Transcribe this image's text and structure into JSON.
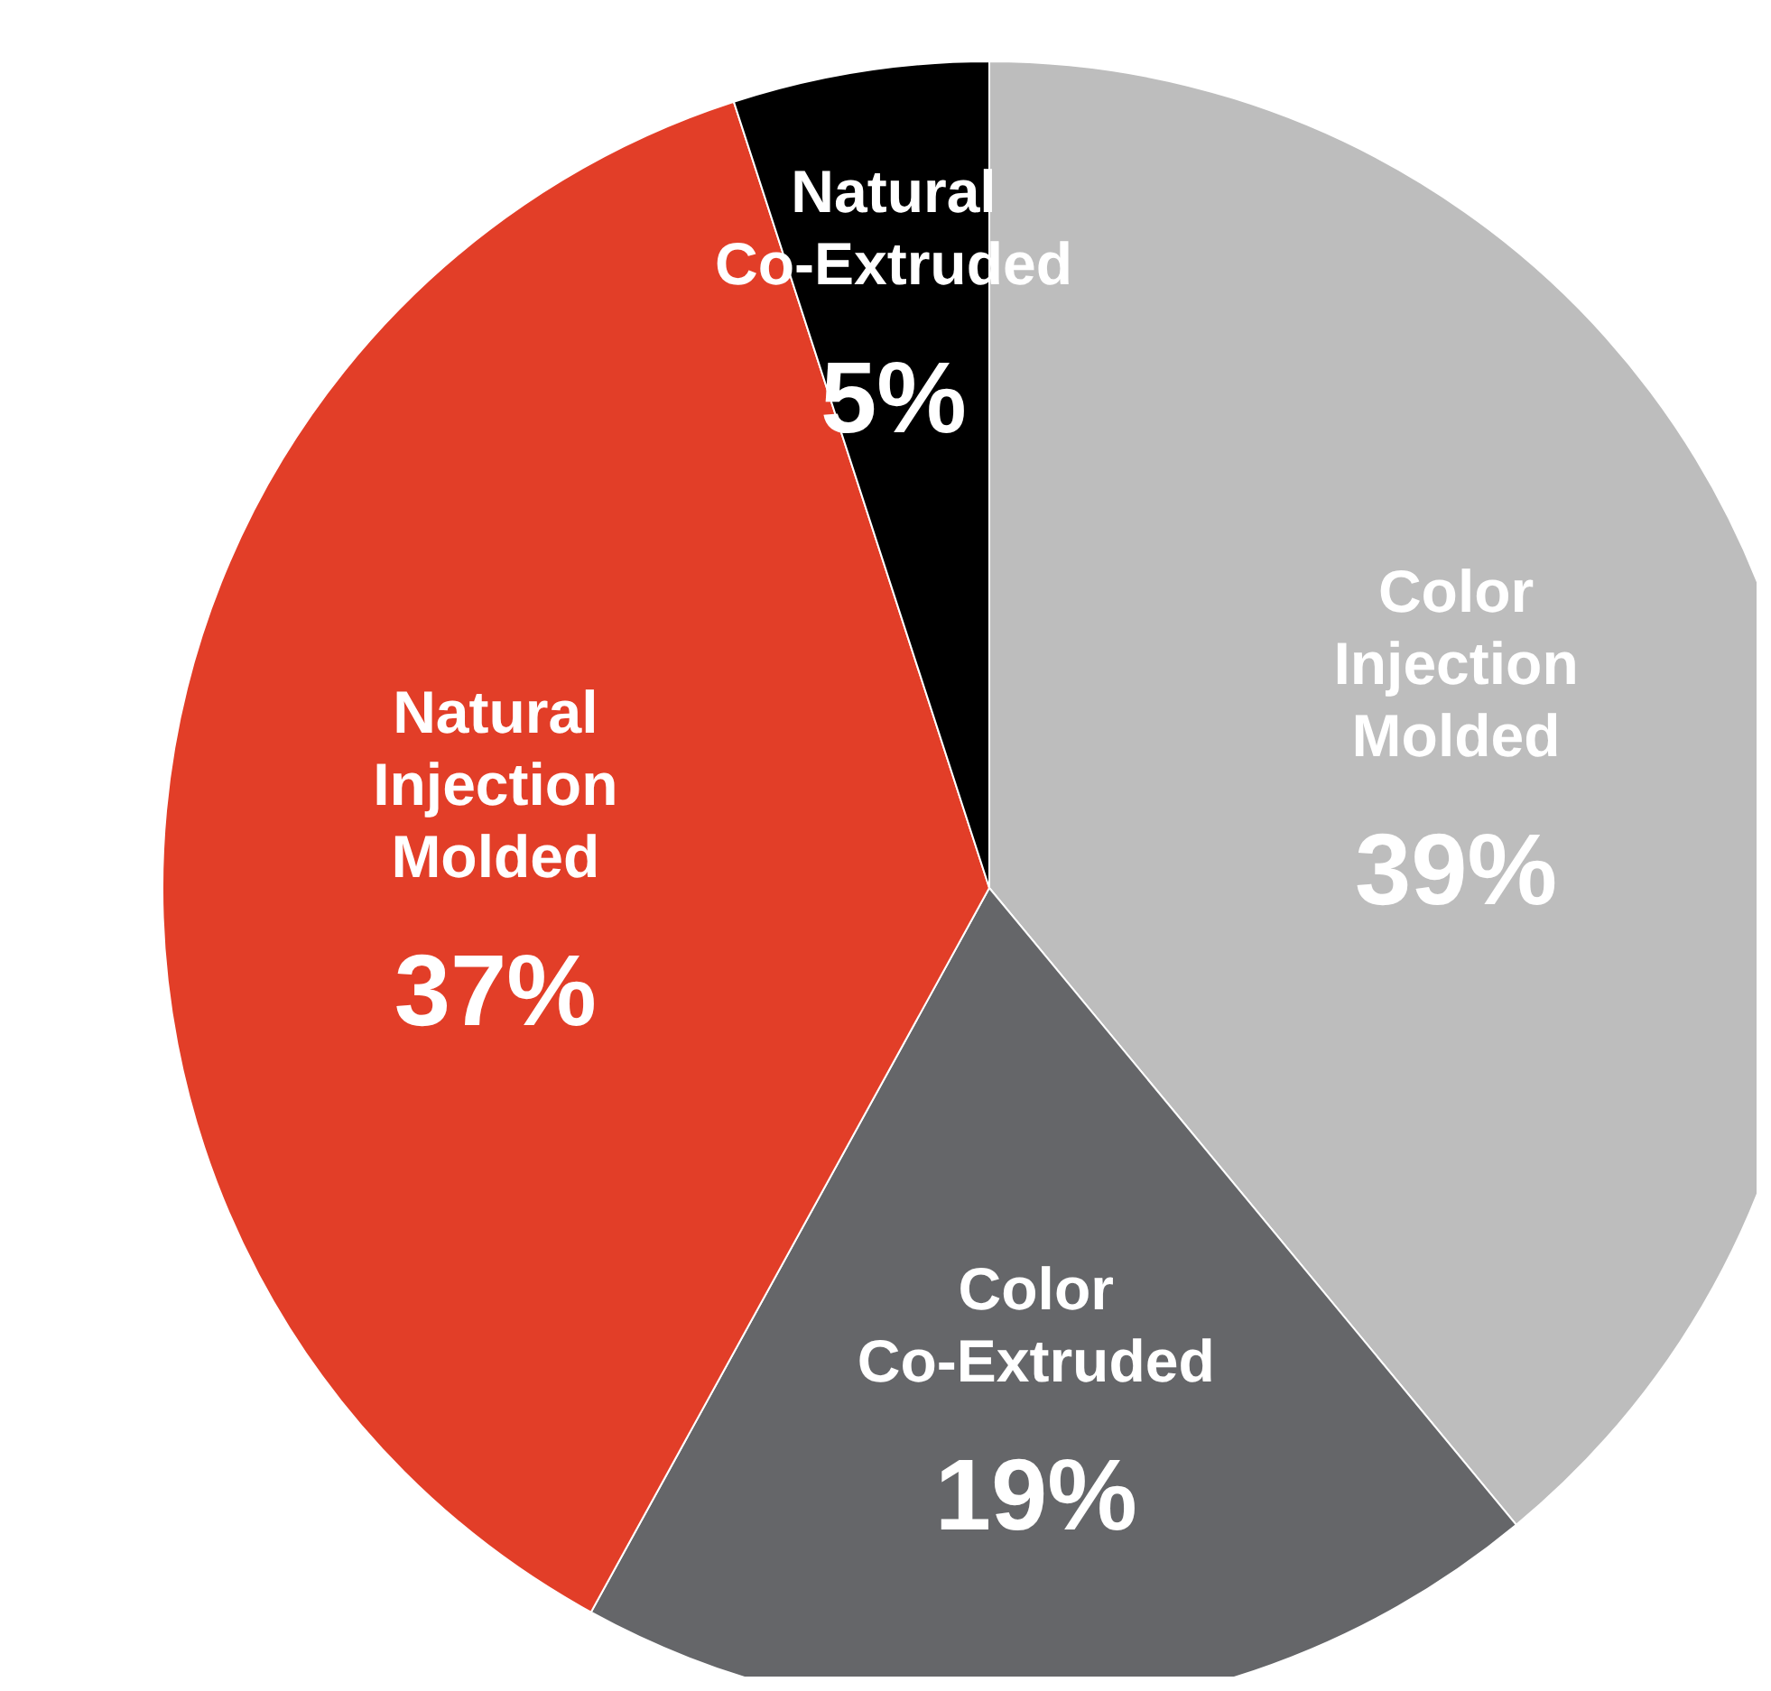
{
  "chart_data": {
    "type": "pie",
    "categories": [
      "Color Injection Molded",
      "Color Co-Extruded",
      "Natural Injection Molded",
      "Natural Co-Extruded"
    ],
    "values": [
      39,
      19,
      37,
      5
    ],
    "colors": [
      "#bdbdbd",
      "#656669",
      "#e23e28",
      "#000000"
    ],
    "value_labels": [
      "39%",
      "19%",
      "37%",
      "5%"
    ]
  }
}
